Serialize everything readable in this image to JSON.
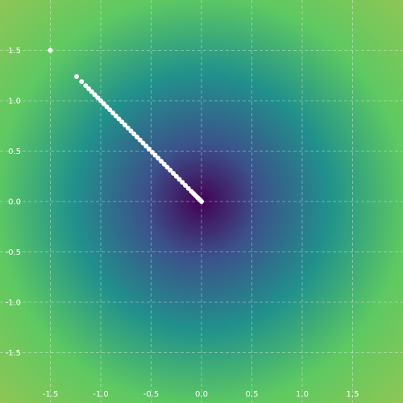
{
  "chart_data": {
    "type": "scatter",
    "title": "",
    "xlabel": "",
    "ylabel": "",
    "xlim": [
      -2.0,
      2.0
    ],
    "ylim": [
      -2.0,
      2.0
    ],
    "grid": true,
    "x_ticks": [
      -1.5,
      -1.0,
      -0.5,
      0.0,
      0.5,
      1.0,
      1.5
    ],
    "y_ticks": [
      -1.5,
      -1.0,
      -0.5,
      0.0,
      0.5,
      1.0,
      1.5
    ],
    "x_tick_labels": [
      "-1.5",
      "-1.0",
      "-0.5",
      "0.0",
      "0.5",
      "1.0",
      "1.5"
    ],
    "y_tick_labels": [
      "-1.5",
      "-1.0",
      "-0.5",
      "0.0",
      "0.5",
      "1.0",
      "1.5"
    ],
    "background": {
      "kind": "radial-heatmap",
      "colormap": "viridis",
      "center": [
        0.0,
        0.0
      ],
      "colors": [
        "#440154",
        "#3b528b",
        "#21918c",
        "#5ec962",
        "#8fc655"
      ]
    },
    "point_color": "#ffffff",
    "series": [
      {
        "x": [
          -1.5,
          -1.24,
          -1.19,
          -1.15,
          -1.12,
          -1.09,
          -1.06,
          -1.03,
          -1.0,
          -0.97,
          -0.94,
          -0.91,
          -0.88,
          -0.85,
          -0.82,
          -0.79,
          -0.76,
          -0.73,
          -0.7,
          -0.67,
          -0.64,
          -0.61,
          -0.58,
          -0.55,
          -0.52,
          -0.49,
          -0.46,
          -0.43,
          -0.4,
          -0.37,
          -0.34,
          -0.31,
          -0.28,
          -0.25,
          -0.22,
          -0.19,
          -0.16,
          -0.13,
          -0.1,
          -0.08,
          -0.06,
          -0.04,
          -0.03,
          -0.02,
          -0.01,
          0.0
        ],
        "y": [
          1.5,
          1.24,
          1.19,
          1.15,
          1.12,
          1.09,
          1.06,
          1.03,
          1.0,
          0.97,
          0.94,
          0.91,
          0.88,
          0.85,
          0.82,
          0.79,
          0.76,
          0.73,
          0.7,
          0.67,
          0.64,
          0.61,
          0.58,
          0.55,
          0.52,
          0.49,
          0.46,
          0.43,
          0.4,
          0.37,
          0.34,
          0.31,
          0.28,
          0.25,
          0.22,
          0.19,
          0.16,
          0.13,
          0.1,
          0.08,
          0.06,
          0.04,
          0.03,
          0.02,
          0.01,
          0.0
        ]
      }
    ]
  }
}
